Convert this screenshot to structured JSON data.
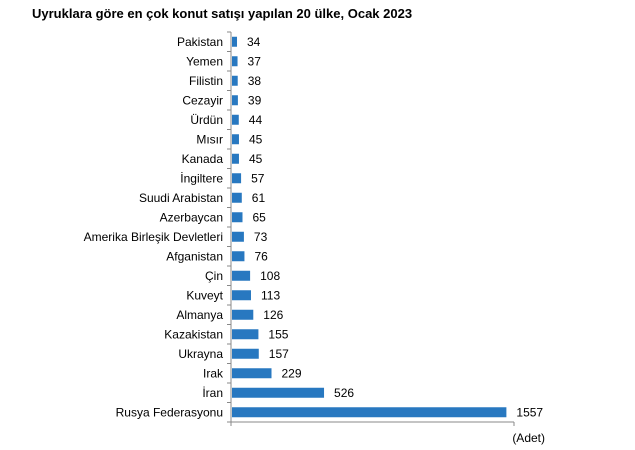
{
  "chart_data": {
    "type": "bar",
    "orientation": "horizontal",
    "title": "Uyruklara göre en çok konut satışı yapılan 20 ülke, Ocak 2023",
    "xlabel": "(Adet)",
    "ylabel": "",
    "xlim": [
      0,
      1600
    ],
    "grid": false,
    "color": "#2878c0",
    "categories": [
      "Pakistan",
      "Yemen",
      "Filistin",
      "Cezayir",
      "Ürdün",
      "Mısır",
      "Kanada",
      "İngiltere",
      "Suudi Arabistan",
      "Azerbaycan",
      "Amerika Birleşik Devletleri",
      "Afganistan",
      "Çin",
      "Kuveyt",
      "Almanya",
      "Kazakistan",
      "Ukrayna",
      "Irak",
      "İran",
      "Rusya Federasyonu"
    ],
    "values": [
      34,
      37,
      38,
      39,
      44,
      45,
      45,
      57,
      61,
      65,
      73,
      76,
      108,
      113,
      126,
      155,
      157,
      229,
      526,
      1557
    ]
  }
}
